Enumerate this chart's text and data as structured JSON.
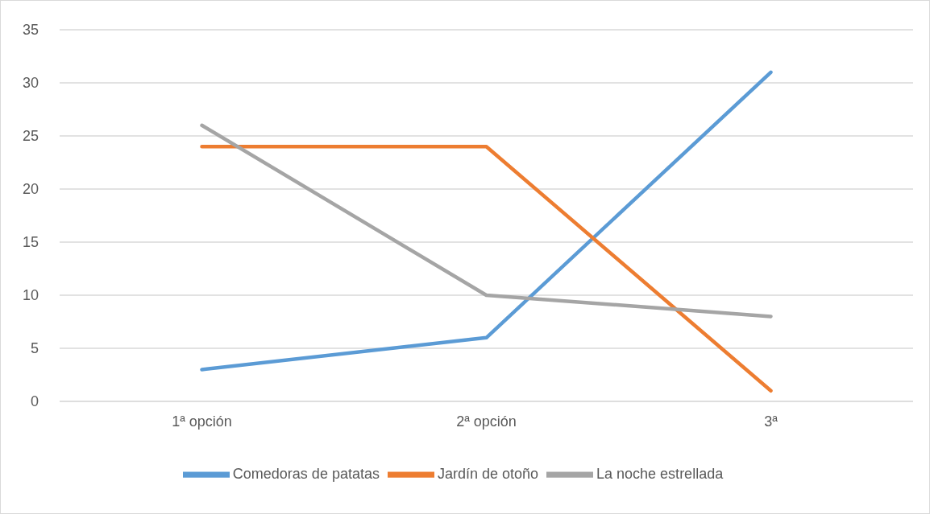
{
  "chart_data": {
    "type": "line",
    "categories": [
      "1ª opción",
      "2ª opción",
      "3ª"
    ],
    "series": [
      {
        "name": "Comedoras de patatas",
        "color": "#5b9bd5",
        "values": [
          3,
          6,
          31
        ]
      },
      {
        "name": "Jardín de otoño",
        "color": "#ed7d31",
        "values": [
          24,
          24,
          1
        ]
      },
      {
        "name": "La noche estrellada",
        "color": "#a5a5a5",
        "values": [
          26,
          10,
          8
        ]
      }
    ],
    "ylim": [
      0,
      35
    ],
    "yticks": [
      0,
      5,
      10,
      15,
      20,
      25,
      30,
      35
    ],
    "grid": "y",
    "legend": "bottom",
    "marker": "none",
    "line_style": "solid"
  }
}
